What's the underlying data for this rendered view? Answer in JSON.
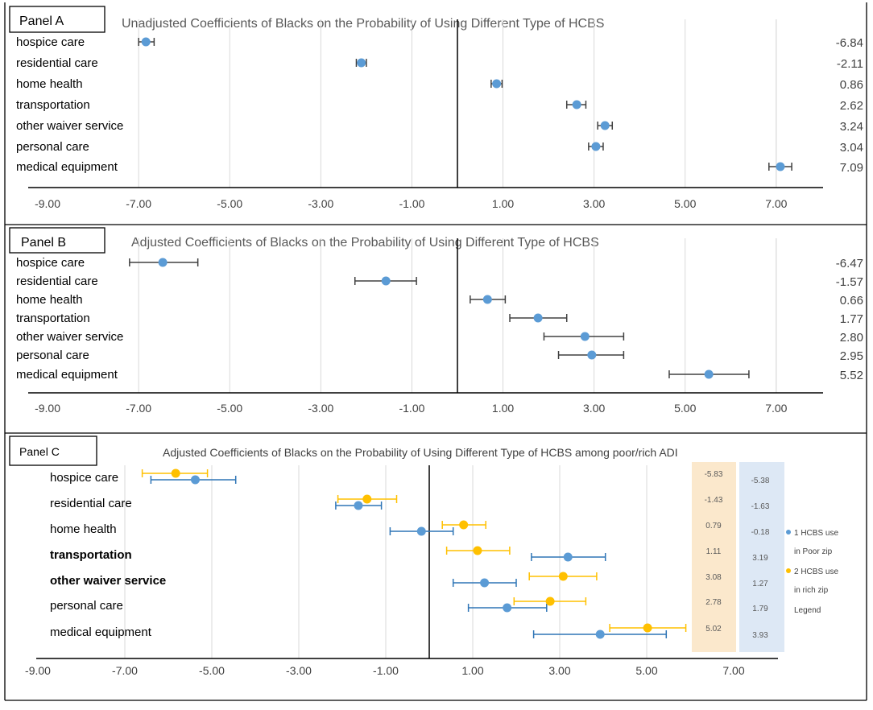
{
  "chart_data": [
    {
      "type": "scatter",
      "panel_label": "Panel A",
      "title": "Unadjusted Coefficients of Blacks on the Probability of Using Different Type of HCBS",
      "xlim": [
        -9,
        8
      ],
      "xticks": [
        "-9.00",
        "-7.00",
        "-5.00",
        "-3.00",
        "-1.00",
        "1.00",
        "3.00",
        "5.00",
        "7.00"
      ],
      "xtick_values": [
        -9,
        -7,
        -5,
        -3,
        -1,
        1,
        3,
        5,
        7
      ],
      "categories": [
        "hospice care",
        "residential care",
        "home health",
        "transportation",
        "other waiver service",
        "personal care",
        "medical equipment"
      ],
      "series": [
        {
          "name": "Unadjusted",
          "color": "#5b9bd5",
          "values": [
            -6.84,
            -2.11,
            0.86,
            2.62,
            3.24,
            3.04,
            7.09
          ],
          "error_low": [
            -7.0,
            -2.22,
            0.74,
            2.4,
            3.08,
            2.88,
            6.84
          ],
          "error_high": [
            -6.66,
            -2.0,
            0.98,
            2.82,
            3.4,
            3.2,
            7.34
          ]
        }
      ],
      "value_labels": [
        "-6.84",
        "-2.11",
        "0.86",
        "2.62",
        "3.24",
        "3.04",
        "7.09"
      ],
      "zero_line": 0
    },
    {
      "type": "scatter",
      "panel_label": "Panel B",
      "title": "Adjusted Coefficients of Blacks on the Probability of Using Different Type of HCBS",
      "xlim": [
        -9,
        8
      ],
      "xticks": [
        "-9.00",
        "-7.00",
        "-5.00",
        "-3.00",
        "-1.00",
        "1.00",
        "3.00",
        "5.00",
        "7.00"
      ],
      "xtick_values": [
        -9,
        -7,
        -5,
        -3,
        -1,
        1,
        3,
        5,
        7
      ],
      "categories": [
        "hospice care",
        "residential care",
        "home health",
        "transportation",
        "other waiver service",
        "personal care",
        "medical equipment"
      ],
      "series": [
        {
          "name": "Adjusted",
          "color": "#5b9bd5",
          "values": [
            -6.47,
            -1.57,
            0.66,
            1.77,
            2.8,
            2.95,
            5.52
          ],
          "error_low": [
            -7.2,
            -2.25,
            0.28,
            1.15,
            1.9,
            2.22,
            4.65
          ],
          "error_high": [
            -5.7,
            -0.9,
            1.05,
            2.4,
            3.65,
            3.65,
            6.4
          ]
        }
      ],
      "value_labels": [
        "-6.47",
        "-1.57",
        "0.66",
        "1.77",
        "2.80",
        "2.95",
        "5.52"
      ],
      "zero_line": 0
    },
    {
      "type": "scatter",
      "panel_label": "Panel C",
      "title": "Adjusted Coefficients of Blacks on the Probability of Using Different Type of HCBS among poor/rich ADI",
      "xlim": [
        -9,
        8
      ],
      "xticks": [
        "-9.00",
        "-7.00",
        "-5.00",
        "-3.00",
        "-1.00",
        "1.00",
        "3.00",
        "5.00",
        "7.00"
      ],
      "xtick_values": [
        -9,
        -7,
        -5,
        -3,
        -1,
        1,
        3,
        5,
        7
      ],
      "categories": [
        "hospice care",
        "residential care",
        "home health",
        "transportation",
        "other waiver service",
        "personal care",
        "medical equipment"
      ],
      "bold_categories": [
        "transportation",
        "other waiver service"
      ],
      "series": [
        {
          "name": "1 HCBS use in Poor zip",
          "color": "#2e75b6",
          "marker_color": "#5b9bd5",
          "values": [
            -5.38,
            -1.63,
            -0.18,
            3.19,
            1.27,
            1.79,
            3.93
          ],
          "error_low": [
            -6.4,
            -2.15,
            -0.9,
            2.35,
            0.55,
            0.9,
            2.4
          ],
          "error_high": [
            -4.45,
            -1.1,
            0.55,
            4.05,
            2.0,
            2.7,
            5.45
          ]
        },
        {
          "name": "2 HCBS use in rich zip",
          "color": "#ffc000",
          "marker_color": "#ffc000",
          "values": [
            -5.83,
            -1.43,
            0.79,
            1.11,
            3.08,
            2.78,
            5.02
          ],
          "error_low": [
            -6.6,
            -2.1,
            0.3,
            0.4,
            2.3,
            1.95,
            4.15
          ],
          "error_high": [
            -5.1,
            -0.75,
            1.3,
            1.85,
            3.85,
            3.6,
            5.9
          ]
        }
      ],
      "rich_labels": [
        "-5.83",
        "-1.43",
        "0.79",
        "1.11",
        "3.08",
        "2.78",
        "5.02"
      ],
      "poor_labels": [
        "-5.38",
        "-1.63",
        "-0.18",
        "3.19",
        "1.27",
        "1.79",
        "3.93"
      ],
      "legend": {
        "items": [
          {
            "line1": "1 HCBS use",
            "line2": "in Poor zip",
            "color": "#5b9bd5"
          },
          {
            "line1": "2 HCBS use",
            "line2": "in rich zip",
            "color": "#ffc000"
          }
        ],
        "title": "Legend"
      },
      "zero_line": 0
    }
  ],
  "colors": {
    "blue_marker": "#5b9bd5",
    "blue_err": "#2e75b6",
    "yellow": "#ffc000",
    "grid": "#d9d9d9",
    "axis": "#000000",
    "rich_box": "#fbe8cc",
    "poor_box": "#dde8f5"
  }
}
